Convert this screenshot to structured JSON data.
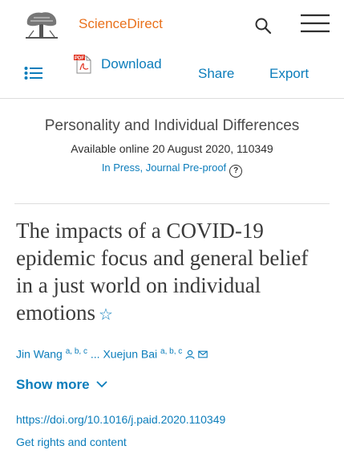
{
  "header": {
    "brand": "ScienceDirect"
  },
  "toolbar": {
    "download_label": "Download",
    "share_label": "Share",
    "export_label": "Export"
  },
  "article": {
    "journal": "Personality and Individual Differences",
    "available": "Available online 20 August 2020, 110349",
    "status": "In Press, Journal Pre-proof",
    "help_glyph": "?",
    "title": "The impacts of a COVID-19 epidemic focus and general belief in a just world on individual emotions",
    "star_glyph": "☆",
    "authors": {
      "first": "Jin Wang",
      "first_aff": "a, b, c",
      "ellipsis": "...",
      "last": "Xuejun Bai",
      "last_aff": "a, b, c"
    },
    "show_more": "Show more",
    "doi": "https://doi.org/10.1016/j.paid.2020.110349",
    "rights": "Get rights and content"
  },
  "colors": {
    "brand": "#e9711c",
    "link": "#0c7dbb"
  },
  "icons": [
    "elsevier-tree-logo",
    "search-icon",
    "hamburger-menu-icon",
    "outline-list-icon",
    "pdf-icon",
    "help-icon",
    "star-icon",
    "person-icon",
    "mail-icon",
    "chevron-down-icon"
  ]
}
